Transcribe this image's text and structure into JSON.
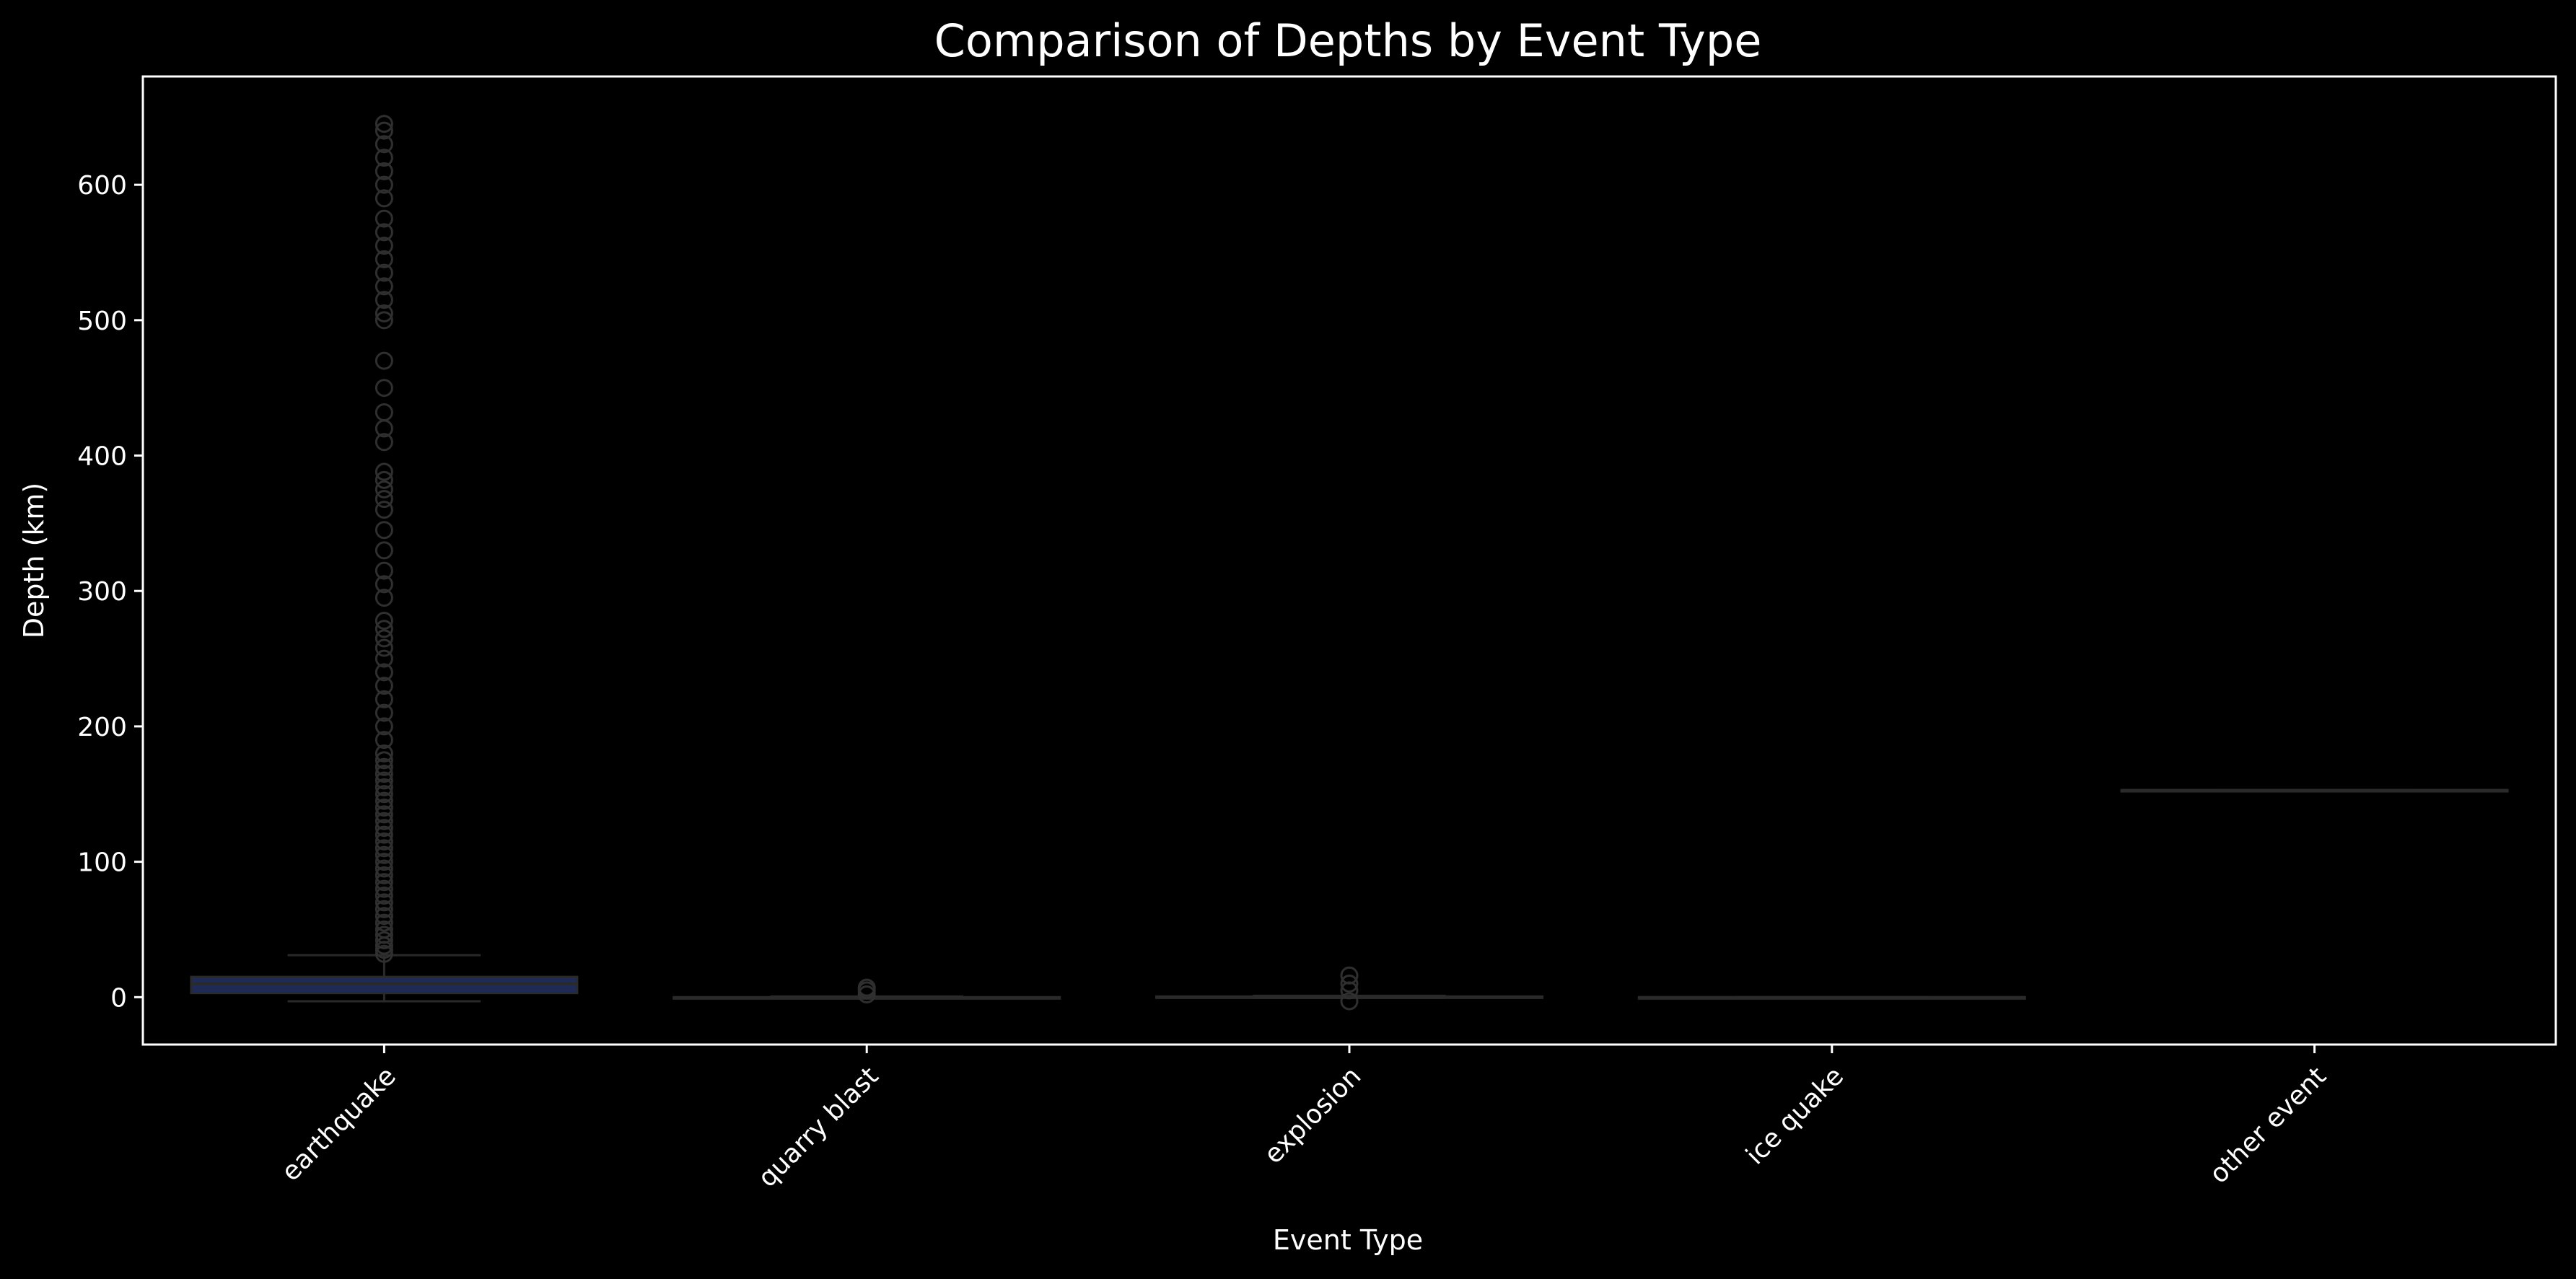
{
  "chart_data": {
    "type": "box",
    "title": "Comparison of Depths by Event Type",
    "xlabel": "Event Type",
    "ylabel": "Depth (km)",
    "ylim": [
      -35,
      680
    ],
    "yticks": [
      0,
      100,
      200,
      300,
      400,
      500,
      600
    ],
    "categories": [
      "earthquake",
      "quarry blast",
      "explosion",
      "ice quake",
      "other event"
    ],
    "grid": false,
    "boxes": [
      {
        "category": "earthquake",
        "whisker_low": -3,
        "q1": 3,
        "median": 10,
        "q3": 15,
        "whisker_high": 31,
        "outliers": [
          32,
          35,
          38,
          42,
          46,
          50,
          55,
          60,
          65,
          70,
          75,
          80,
          85,
          90,
          95,
          100,
          105,
          110,
          115,
          120,
          125,
          130,
          135,
          140,
          145,
          150,
          155,
          160,
          165,
          170,
          175,
          180,
          190,
          200,
          210,
          220,
          230,
          240,
          250,
          258,
          265,
          272,
          278,
          295,
          305,
          315,
          330,
          345,
          360,
          368,
          375,
          382,
          388,
          410,
          420,
          432,
          450,
          470,
          500,
          505,
          515,
          525,
          535,
          545,
          555,
          565,
          575,
          590,
          600,
          610,
          620,
          630,
          640,
          645
        ]
      },
      {
        "category": "quarry blast",
        "whisker_low": -1,
        "q1": -1,
        "median": -0.5,
        "q3": 0,
        "whisker_high": 0.5,
        "outliers": [
          2,
          5,
          7
        ]
      },
      {
        "category": "explosion",
        "whisker_low": -0.5,
        "q1": -0.5,
        "median": 0,
        "q3": 0.5,
        "whisker_high": 1,
        "outliers": [
          -3,
          5,
          10,
          16
        ]
      },
      {
        "category": "ice quake",
        "whisker_low": 0,
        "q1": 0,
        "median": 0,
        "q3": 0,
        "whisker_high": 0,
        "outliers": []
      },
      {
        "category": "other event",
        "whisker_low": 153,
        "q1": 153,
        "median": 153,
        "q3": 153,
        "whisker_high": 153,
        "outliers": []
      }
    ],
    "colors": {
      "background": "#000000",
      "box_fill_earthquake": "#1f2a57",
      "box_line": "#2a2a2a",
      "outlier": "#2f2f2f",
      "axis": "#ffffff",
      "text": "#ffffff"
    }
  }
}
